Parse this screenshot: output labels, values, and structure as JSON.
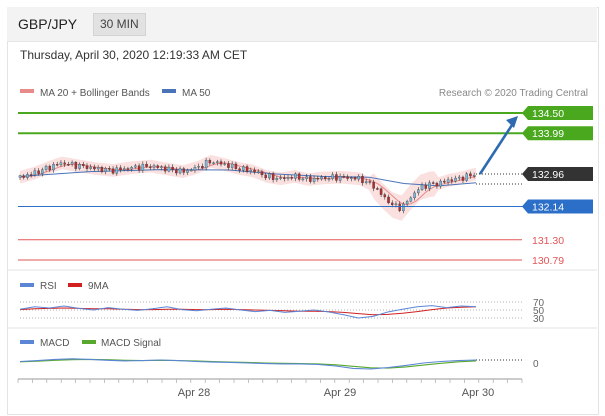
{
  "header": {
    "symbol": "GBP/JPY",
    "timeframe": "30 MIN"
  },
  "datetime": "Thursday, April 30, 2020 12:19:33 AM CET",
  "legend": {
    "ma20_bb": "MA 20 + Bollinger Bands",
    "ma50": "MA 50",
    "credit": "Research © 2020 Trading Central"
  },
  "colors": {
    "bull": "#78b8d8",
    "bear": "#b03030",
    "ma20": "#e88a8a",
    "ma50": "#4a73b8",
    "bb_fill": "#f9d6d6",
    "resistance": "#4aa81e",
    "pivot": "#2c6fc9",
    "support": "#e25555",
    "price_tag": "#333333",
    "arrow": "#2e6ab0",
    "rsi": "#5b86d6",
    "rsi_ma": "#d02020",
    "macd": "#5b86d6",
    "macd_signal": "#58a82e"
  },
  "chart_data": [
    {
      "type": "line",
      "title": "GBP/JPY 30 MIN",
      "y_axis_side": "right",
      "ylim": [
        130.5,
        134.9
      ],
      "x_tick_labels": [
        "Apr 28",
        "Apr 29",
        "Apr 30"
      ],
      "legend": [
        "MA 20 + Bollinger Bands",
        "MA 50"
      ],
      "levels": [
        {
          "label": "134.50",
          "value": 134.5,
          "kind": "resistance"
        },
        {
          "label": "133.99",
          "value": 133.99,
          "kind": "resistance"
        },
        {
          "label": "132.96",
          "value": 132.96,
          "kind": "last_price"
        },
        {
          "label": "132.14",
          "value": 132.14,
          "kind": "pivot"
        },
        {
          "label": "131.30",
          "value": 131.3,
          "kind": "support"
        },
        {
          "label": "130.79",
          "value": 130.79,
          "kind": "support"
        }
      ],
      "price_path": [
        {
          "t": 0,
          "v": 132.88
        },
        {
          "t": 6,
          "v": 132.98
        },
        {
          "t": 12,
          "v": 133.12
        },
        {
          "t": 18,
          "v": 133.24
        },
        {
          "t": 24,
          "v": 133.18
        },
        {
          "t": 32,
          "v": 133.1
        },
        {
          "t": 40,
          "v": 133.05
        },
        {
          "t": 48,
          "v": 133.12
        },
        {
          "t": 56,
          "v": 133.16
        },
        {
          "t": 64,
          "v": 133.08
        },
        {
          "t": 70,
          "v": 133.02
        },
        {
          "t": 76,
          "v": 133.12
        },
        {
          "t": 82,
          "v": 133.28
        },
        {
          "t": 88,
          "v": 133.2
        },
        {
          "t": 94,
          "v": 133.1
        },
        {
          "t": 100,
          "v": 133.04
        },
        {
          "t": 106,
          "v": 132.9
        },
        {
          "t": 112,
          "v": 132.84
        },
        {
          "t": 118,
          "v": 132.9
        },
        {
          "t": 124,
          "v": 132.82
        },
        {
          "t": 130,
          "v": 132.86
        },
        {
          "t": 138,
          "v": 132.88
        },
        {
          "t": 146,
          "v": 132.84
        },
        {
          "t": 152,
          "v": 132.66
        },
        {
          "t": 156,
          "v": 132.4
        },
        {
          "t": 160,
          "v": 132.18
        },
        {
          "t": 164,
          "v": 132.1
        },
        {
          "t": 168,
          "v": 132.38
        },
        {
          "t": 172,
          "v": 132.62
        },
        {
          "t": 176,
          "v": 132.7
        },
        {
          "t": 180,
          "v": 132.72
        },
        {
          "t": 184,
          "v": 132.8
        },
        {
          "t": 188,
          "v": 132.84
        },
        {
          "t": 192,
          "v": 132.9
        },
        {
          "t": 196,
          "v": 132.96
        }
      ],
      "ma50": [
        {
          "t": 0,
          "v": 132.9
        },
        {
          "t": 30,
          "v": 133.02
        },
        {
          "t": 60,
          "v": 133.07
        },
        {
          "t": 90,
          "v": 133.06
        },
        {
          "t": 110,
          "v": 132.96
        },
        {
          "t": 130,
          "v": 132.9
        },
        {
          "t": 150,
          "v": 132.88
        },
        {
          "t": 165,
          "v": 132.72
        },
        {
          "t": 180,
          "v": 132.66
        },
        {
          "t": 196,
          "v": 132.74
        }
      ],
      "forecast_target": 134.5
    },
    {
      "type": "line",
      "title": "RSI",
      "legend": [
        "RSI",
        "9MA"
      ],
      "y_tick_labels": [
        "70",
        "50",
        "30"
      ],
      "ylim": [
        20,
        80
      ],
      "rsi": [
        52,
        58,
        55,
        60,
        54,
        50,
        56,
        52,
        49,
        53,
        58,
        51,
        48,
        52,
        55,
        50,
        46,
        49,
        44,
        47,
        50,
        45,
        38,
        30,
        34,
        45,
        52,
        58,
        61,
        56,
        60,
        58
      ],
      "rsi_ma": [
        51,
        53,
        54,
        55,
        54,
        53,
        53,
        52,
        51,
        51,
        52,
        52,
        51,
        51,
        52,
        51,
        50,
        49,
        48,
        47,
        47,
        46,
        44,
        41,
        38,
        39,
        42,
        46,
        51,
        55,
        57,
        58
      ]
    },
    {
      "type": "line",
      "title": "MACD",
      "legend": [
        "MACD",
        "MACD Signal"
      ],
      "y_tick_labels": [
        "0"
      ],
      "ylim": [
        -0.3,
        0.3
      ],
      "macd": [
        0.05,
        0.08,
        0.12,
        0.14,
        0.12,
        0.09,
        0.07,
        0.08,
        0.1,
        0.08,
        0.05,
        0.03,
        0.02,
        0.0,
        -0.02,
        -0.03,
        -0.03,
        -0.05,
        -0.1,
        -0.18,
        -0.2,
        -0.15,
        -0.08,
        0.0,
        0.05,
        0.08,
        0.1
      ],
      "macd_signal": [
        0.04,
        0.06,
        0.09,
        0.11,
        0.12,
        0.11,
        0.09,
        0.08,
        0.09,
        0.08,
        0.07,
        0.05,
        0.03,
        0.02,
        0.0,
        -0.01,
        -0.02,
        -0.03,
        -0.06,
        -0.11,
        -0.16,
        -0.17,
        -0.13,
        -0.07,
        -0.01,
        0.04,
        0.07
      ]
    }
  ]
}
